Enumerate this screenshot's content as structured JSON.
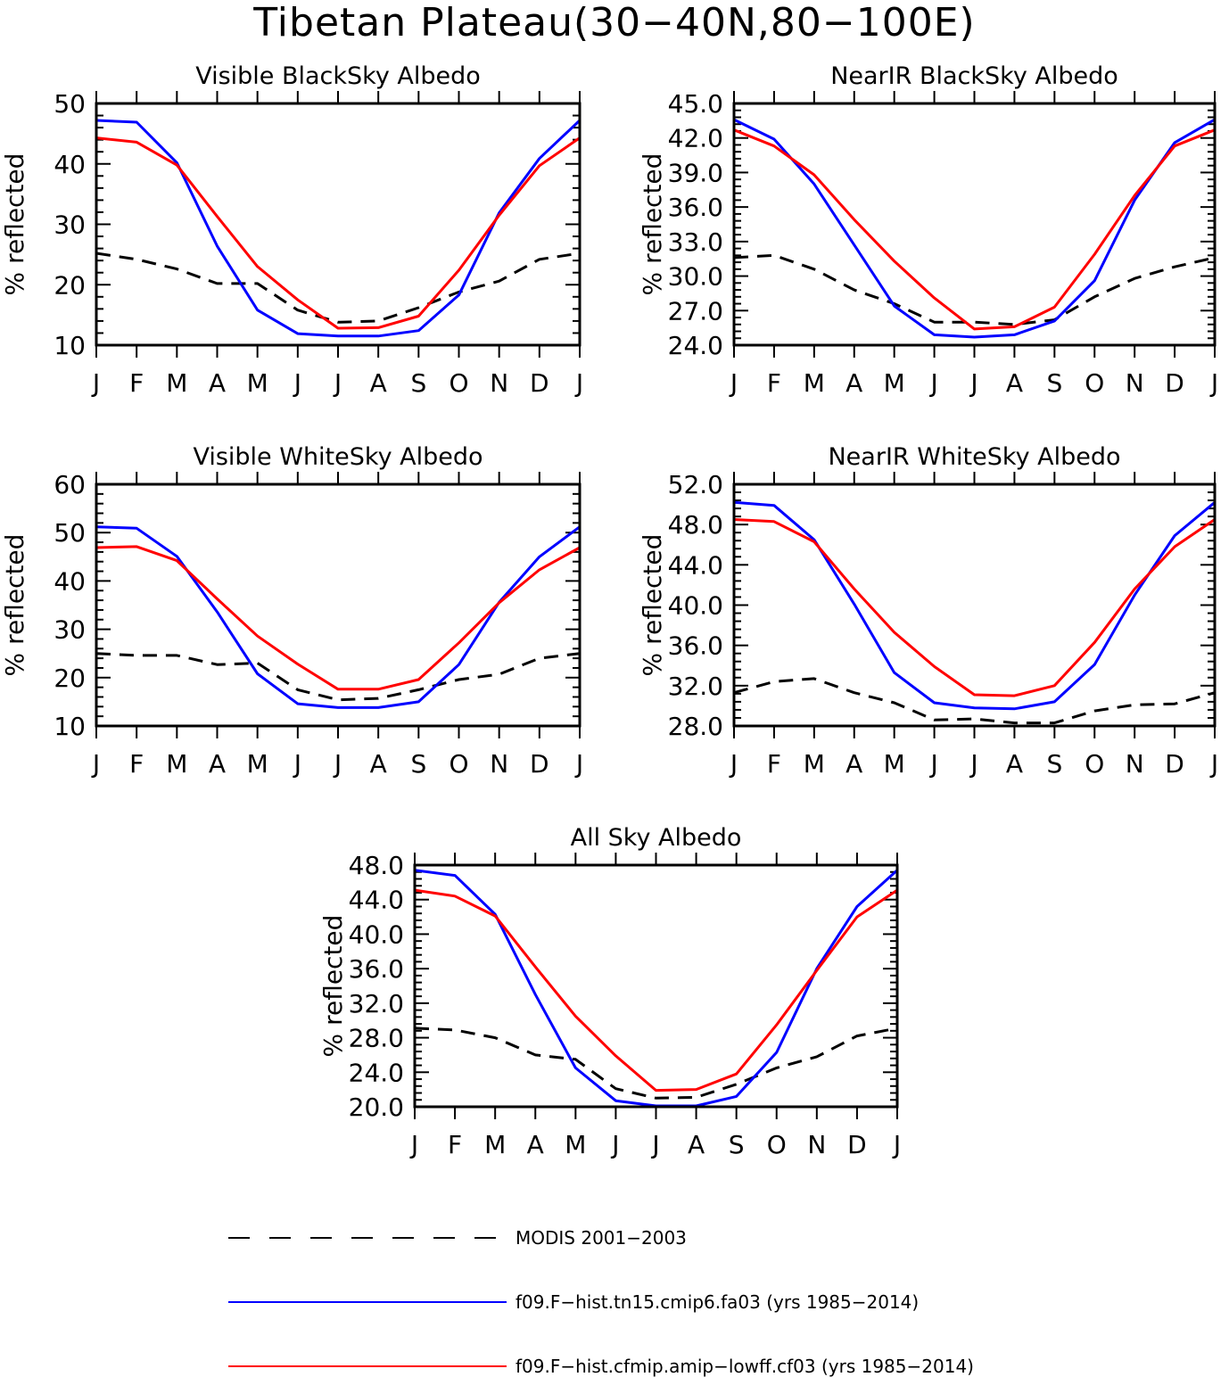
{
  "title": "Tibetan Plateau(30−40N,80−100E)",
  "legend": {
    "items": [
      {
        "label": "MODIS 2001−2003",
        "color": "#000000",
        "dashed": true
      },
      {
        "label": "f09.F−hist.tn15.cmip6.fa03 (yrs 1985−2014)",
        "color": "#0000ff",
        "dashed": false
      },
      {
        "label": "f09.F−hist.cfmip.amip−lowff.cf03 (yrs 1985−2014)",
        "color": "#ff0000",
        "dashed": false
      }
    ]
  },
  "chart_data": [
    {
      "type": "line",
      "title": "Visible BlackSky Albedo",
      "ylabel": "% reflected",
      "xlabel": "",
      "categories": [
        "J",
        "F",
        "M",
        "A",
        "M",
        "J",
        "J",
        "A",
        "S",
        "O",
        "N",
        "D",
        "J"
      ],
      "ylim": [
        10,
        50
      ],
      "yticks": [
        "10",
        "20",
        "30",
        "40",
        "50"
      ],
      "grid": false,
      "series": [
        {
          "name": "MODIS 2001−2003",
          "color": "#000000",
          "dashed": true,
          "values": [
            25.2,
            24.2,
            22.6,
            20.2,
            20.2,
            15.8,
            13.8,
            14.0,
            16.2,
            18.8,
            20.6,
            24.2,
            25.2
          ]
        },
        {
          "name": "f09.F−hist.tn15.cmip6.fa03 (yrs 1985−2014)",
          "color": "#0000ff",
          "dashed": false,
          "values": [
            47.2,
            46.9,
            40.2,
            26.4,
            15.8,
            11.9,
            11.5,
            11.5,
            12.4,
            18.3,
            31.9,
            40.9,
            47.2
          ]
        },
        {
          "name": "f09.F−hist.cfmip.amip−lowff.cf03 (yrs 1985−2014)",
          "color": "#ff0000",
          "dashed": false,
          "values": [
            44.3,
            43.6,
            39.8,
            31.3,
            23.0,
            17.5,
            12.8,
            12.9,
            14.8,
            22.4,
            31.5,
            39.7,
            44.3
          ]
        }
      ]
    },
    {
      "type": "line",
      "title": "NearIR BlackSky Albedo",
      "ylabel": "% reflected",
      "xlabel": "",
      "categories": [
        "J",
        "F",
        "M",
        "A",
        "M",
        "J",
        "J",
        "A",
        "S",
        "O",
        "N",
        "D",
        "J"
      ],
      "ylim": [
        24,
        45
      ],
      "yticks": [
        "24.0",
        "27.0",
        "30.0",
        "33.0",
        "36.0",
        "39.0",
        "42.0",
        "45.0"
      ],
      "grid": false,
      "series": [
        {
          "name": "MODIS 2001−2003",
          "color": "#000000",
          "dashed": true,
          "values": [
            31.6,
            31.8,
            30.6,
            28.8,
            27.6,
            26.0,
            26.0,
            25.8,
            26.2,
            28.2,
            29.8,
            30.8,
            31.6
          ]
        },
        {
          "name": "f09.F−hist.tn15.cmip6.fa03 (yrs 1985−2014)",
          "color": "#0000ff",
          "dashed": false,
          "values": [
            43.6,
            41.9,
            38.0,
            32.7,
            27.4,
            24.9,
            24.7,
            24.9,
            26.1,
            29.6,
            36.6,
            41.6,
            43.6
          ]
        },
        {
          "name": "f09.F−hist.cfmip.amip−lowff.cf03 (yrs 1985−2014)",
          "color": "#ff0000",
          "dashed": false,
          "values": [
            42.7,
            41.3,
            38.8,
            34.9,
            31.3,
            28.1,
            25.4,
            25.6,
            27.3,
            31.9,
            37.0,
            41.3,
            42.7
          ]
        }
      ]
    },
    {
      "type": "line",
      "title": "Visible WhiteSky Albedo",
      "ylabel": "% reflected",
      "xlabel": "",
      "categories": [
        "J",
        "F",
        "M",
        "A",
        "M",
        "J",
        "J",
        "A",
        "S",
        "O",
        "N",
        "D",
        "J"
      ],
      "ylim": [
        10,
        60
      ],
      "yticks": [
        "10",
        "20",
        "30",
        "40",
        "50",
        "60"
      ],
      "grid": false,
      "series": [
        {
          "name": "MODIS 2001−2003",
          "color": "#000000",
          "dashed": true,
          "values": [
            25.0,
            24.6,
            24.6,
            22.7,
            23.0,
            17.5,
            15.4,
            15.7,
            17.5,
            19.6,
            20.7,
            24.0,
            25.0
          ]
        },
        {
          "name": "f09.F−hist.tn15.cmip6.fa03 (yrs 1985−2014)",
          "color": "#0000ff",
          "dashed": false,
          "values": [
            51.2,
            50.9,
            45.1,
            33.6,
            20.8,
            14.6,
            13.8,
            13.8,
            15.0,
            22.7,
            35.6,
            45.0,
            51.2
          ]
        },
        {
          "name": "f09.F−hist.cfmip.amip−lowff.cf03 (yrs 1985−2014)",
          "color": "#ff0000",
          "dashed": false,
          "values": [
            46.9,
            47.1,
            44.2,
            36.3,
            28.6,
            22.8,
            17.6,
            17.6,
            19.6,
            27.2,
            35.5,
            42.3,
            46.9
          ]
        }
      ]
    },
    {
      "type": "line",
      "title": "NearIR WhiteSky Albedo",
      "ylabel": "% reflected",
      "xlabel": "",
      "categories": [
        "J",
        "F",
        "M",
        "A",
        "M",
        "J",
        "J",
        "A",
        "S",
        "O",
        "N",
        "D",
        "J"
      ],
      "ylim": [
        28,
        52
      ],
      "yticks": [
        "28.0",
        "32.0",
        "36.0",
        "40.0",
        "44.0",
        "48.0",
        "52.0"
      ],
      "grid": false,
      "series": [
        {
          "name": "MODIS 2001−2003",
          "color": "#000000",
          "dashed": true,
          "values": [
            31.3,
            32.4,
            32.7,
            31.3,
            30.3,
            28.6,
            28.7,
            28.3,
            28.3,
            29.5,
            30.1,
            30.2,
            31.3
          ]
        },
        {
          "name": "f09.F−hist.tn15.cmip6.fa03 (yrs 1985−2014)",
          "color": "#0000ff",
          "dashed": false,
          "values": [
            50.2,
            49.9,
            46.5,
            40.1,
            33.3,
            30.3,
            29.8,
            29.7,
            30.4,
            34.1,
            41.0,
            46.9,
            50.2
          ]
        },
        {
          "name": "f09.F−hist.cfmip.amip−lowff.cf03 (yrs 1985−2014)",
          "color": "#ff0000",
          "dashed": false,
          "values": [
            48.5,
            48.3,
            46.3,
            41.6,
            37.3,
            33.9,
            31.1,
            31.0,
            32.0,
            36.3,
            41.6,
            45.8,
            48.5
          ]
        }
      ]
    },
    {
      "type": "line",
      "title": "All Sky Albedo",
      "ylabel": "% reflected",
      "xlabel": "",
      "categories": [
        "J",
        "F",
        "M",
        "A",
        "M",
        "J",
        "J",
        "A",
        "S",
        "O",
        "N",
        "D",
        "J"
      ],
      "ylim": [
        20,
        48
      ],
      "yticks": [
        "20.0",
        "24.0",
        "28.0",
        "32.0",
        "36.0",
        "40.0",
        "44.0",
        "48.0"
      ],
      "grid": false,
      "series": [
        {
          "name": "MODIS 2001−2003",
          "color": "#000000",
          "dashed": true,
          "values": [
            29.1,
            28.9,
            28.0,
            26.0,
            25.5,
            22.1,
            21.0,
            21.1,
            22.6,
            24.5,
            25.8,
            28.2,
            29.1
          ]
        },
        {
          "name": "f09.F−hist.tn15.cmip6.fa03 (yrs 1985−2014)",
          "color": "#0000ff",
          "dashed": false,
          "values": [
            47.4,
            46.8,
            42.3,
            33.0,
            24.5,
            20.7,
            20.1,
            20.1,
            21.2,
            26.3,
            36.0,
            43.2,
            47.4
          ]
        },
        {
          "name": "f09.F−hist.cfmip.amip−lowff.cf03 (yrs 1985−2014)",
          "color": "#ff0000",
          "dashed": false,
          "values": [
            45.1,
            44.4,
            42.1,
            36.2,
            30.5,
            25.9,
            21.9,
            22.0,
            23.8,
            29.5,
            35.8,
            42.0,
            45.1
          ]
        }
      ]
    }
  ]
}
